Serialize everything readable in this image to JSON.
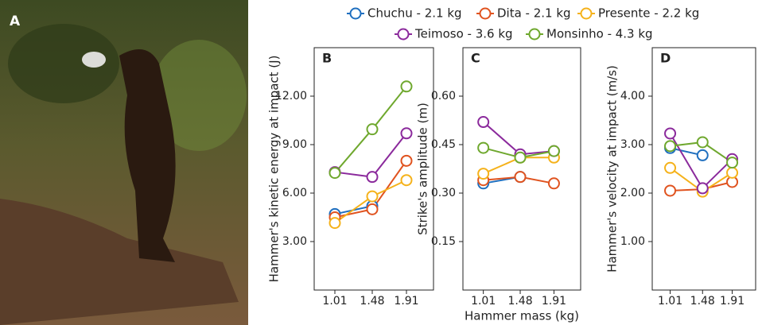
{
  "photo_panel": {
    "label": "A"
  },
  "chart_data": [
    {
      "type": "line",
      "panel_label": "B",
      "ylabel": "Hammer's kinetic energy at impact (J)",
      "x": [
        1.01,
        1.48,
        1.91
      ],
      "xlim": [
        0.75,
        2.25
      ],
      "xticks": [
        1.01,
        1.48,
        1.91
      ],
      "ylim": [
        0,
        15
      ],
      "yticks": [
        {
          "value": 3,
          "label": "3.00"
        },
        {
          "value": 6,
          "label": "6.00"
        },
        {
          "value": 9,
          "label": "9.00"
        },
        {
          "value": 12,
          "label": "12.00"
        }
      ],
      "series": [
        {
          "name": "Chuchu - 2.1 kg",
          "color": "#1f6fbf",
          "values": [
            4.7,
            5.2,
            null
          ]
        },
        {
          "name": "Dita - 2.1 kg",
          "color": "#e0531f",
          "values": [
            4.5,
            5.0,
            8.0
          ]
        },
        {
          "name": "Presente - 2.2 kg",
          "color": "#f5b21b",
          "values": [
            4.15,
            5.8,
            6.8
          ]
        },
        {
          "name": "Teimoso - 3.6 kg",
          "color": "#8b2a9c",
          "values": [
            7.3,
            7.0,
            9.7
          ]
        },
        {
          "name": "Monsinho - 4.3 kg",
          "color": "#6fa82e",
          "values": [
            7.25,
            9.95,
            12.6
          ]
        }
      ]
    },
    {
      "type": "line",
      "panel_label": "C",
      "ylabel": "Strike's amplitude (m)",
      "xlabel": "Hammer mass (kg)",
      "x": [
        1.01,
        1.48,
        1.91
      ],
      "xlim": [
        0.75,
        2.25
      ],
      "xticks": [
        1.01,
        1.48,
        1.91
      ],
      "ylim": [
        0,
        0.75
      ],
      "yticks": [
        0.15,
        {
          "value": 0.3,
          "label": "0.30"
        },
        0.45,
        {
          "value": 0.6,
          "label": "0.60"
        }
      ],
      "series": [
        {
          "name": "Chuchu - 2.1 kg",
          "color": "#1f6fbf",
          "values": [
            0.33,
            0.35,
            null
          ]
        },
        {
          "name": "Dita - 2.1 kg",
          "color": "#e0531f",
          "values": [
            0.34,
            0.35,
            0.33
          ]
        },
        {
          "name": "Presente - 2.2 kg",
          "color": "#f5b21b",
          "values": [
            0.36,
            0.41,
            0.41
          ]
        },
        {
          "name": "Teimoso - 3.6 kg",
          "color": "#8b2a9c",
          "values": [
            0.52,
            0.42,
            0.43
          ]
        },
        {
          "name": "Monsinho - 4.3 kg",
          "color": "#6fa82e",
          "values": [
            0.44,
            0.41,
            0.43
          ]
        }
      ]
    },
    {
      "type": "line",
      "panel_label": "D",
      "ylabel": "Hammer's velocity at impact (m/s)",
      "x": [
        1.01,
        1.48,
        1.91
      ],
      "xlim": [
        0.75,
        2.25
      ],
      "xticks": [
        1.01,
        1.48,
        1.91
      ],
      "ylim": [
        0,
        5
      ],
      "yticks": [
        {
          "value": 1,
          "label": "1.00"
        },
        {
          "value": 2,
          "label": "2.00"
        },
        {
          "value": 3,
          "label": "3.00"
        },
        {
          "value": 4,
          "label": "4.00"
        }
      ],
      "series": [
        {
          "name": "Chuchu - 2.1 kg",
          "color": "#1f6fbf",
          "values": [
            2.93,
            2.78,
            null
          ]
        },
        {
          "name": "Dita - 2.1 kg",
          "color": "#e0531f",
          "values": [
            2.05,
            2.08,
            2.23
          ]
        },
        {
          "name": "Presente - 2.2 kg",
          "color": "#f5b21b",
          "values": [
            2.52,
            2.03,
            2.42
          ]
        },
        {
          "name": "Teimoso - 3.6 kg",
          "color": "#8b2a9c",
          "values": [
            3.23,
            2.1,
            2.7
          ]
        },
        {
          "name": "Monsinho - 4.3 kg",
          "color": "#6fa82e",
          "values": [
            2.97,
            3.05,
            2.63
          ]
        }
      ]
    }
  ]
}
